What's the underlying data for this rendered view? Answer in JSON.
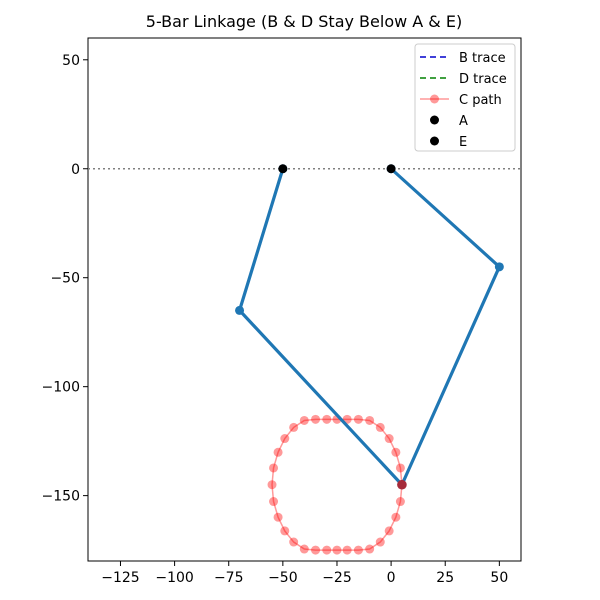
{
  "chart_data": {
    "type": "line",
    "title": "5-Bar Linkage (B & D Stay Below A & E)",
    "xlabel": "",
    "ylabel": "",
    "xlim": [
      -140,
      60
    ],
    "ylim": [
      -180,
      60
    ],
    "x_ticks": [
      -125,
      -100,
      -75,
      -50,
      -25,
      0,
      25,
      50
    ],
    "x_tick_labels": [
      "−125",
      "−100",
      "−75",
      "−50",
      "−25",
      "0",
      "25",
      "50"
    ],
    "y_ticks": [
      -150,
      -100,
      -50,
      0,
      50
    ],
    "y_tick_labels": [
      "−150",
      "−100",
      "−50",
      "0",
      "50"
    ],
    "grid": false,
    "legend_position": "top-right",
    "reference_line": {
      "y": 0,
      "style": "dotted",
      "color": "#808080"
    },
    "linkage": {
      "color": "#1f77b4",
      "points": [
        {
          "x": -50,
          "y": 0
        },
        {
          "x": -70,
          "y": -65
        },
        {
          "x": 5,
          "y": -145
        },
        {
          "x": 50,
          "y": -45
        },
        {
          "x": 0,
          "y": 0
        }
      ]
    },
    "series": [
      {
        "name": "B trace",
        "color": "#0000cc",
        "style": "dashed",
        "x": [],
        "y": []
      },
      {
        "name": "D trace",
        "color": "#008000",
        "style": "dashed",
        "x": [],
        "y": []
      },
      {
        "name": "C path",
        "color": "#ff0000",
        "alpha": 0.4,
        "marker": "circle",
        "x": [
          5,
          4.3,
          2.2,
          -0.9,
          -5,
          -9.9,
          -15.1,
          -20.3,
          -25,
          -29.7,
          -34.9,
          -40.1,
          -45,
          -49.1,
          -52.2,
          -54.3,
          -55,
          -54.3,
          -52.2,
          -49.1,
          -45,
          -40.1,
          -34.9,
          -29.7,
          -25,
          -20.3,
          -15.1,
          -9.9,
          -5,
          -0.9,
          2.2,
          4.3,
          5
        ],
        "y": [
          -145,
          -152.7,
          -159.9,
          -166.2,
          -171.3,
          -174.5,
          -175,
          -175,
          -175,
          -175,
          -175,
          -174.5,
          -171.3,
          -166.2,
          -159.9,
          -152.7,
          -145,
          -137.3,
          -130.1,
          -123.8,
          -118.7,
          -115.5,
          -115,
          -115,
          -115,
          -115,
          -115,
          -115.5,
          -118.7,
          -123.8,
          -130.1,
          -137.3,
          -145
        ]
      },
      {
        "name": "A",
        "color": "#000000",
        "marker": "circle",
        "x": [
          -50
        ],
        "y": [
          0
        ]
      },
      {
        "name": "E",
        "color": "#000000",
        "marker": "circle",
        "x": [
          0
        ],
        "y": [
          0
        ]
      }
    ],
    "highlight_point": {
      "x": 5,
      "y": -145,
      "color": "#a52a3a"
    }
  }
}
